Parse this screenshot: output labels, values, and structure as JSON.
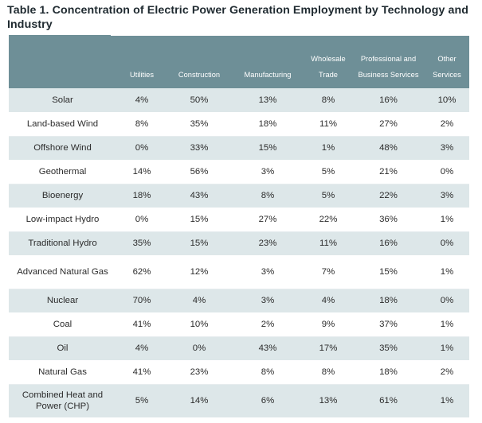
{
  "title": "Table 1. Concentration of Electric Power Generation Employment by Technology and Industry",
  "header_bg": "#6e8f97",
  "band_bg": "#dde7e9",
  "columns": [
    "",
    "Utilities",
    "Construction",
    "Manufacturing",
    "Wholesale Trade",
    "Professional and Business Services",
    "Other Services"
  ],
  "rows": [
    {
      "name": "Solar",
      "values": [
        "4%",
        "50%",
        "13%",
        "8%",
        "16%",
        "10%"
      ]
    },
    {
      "name": "Land-based Wind",
      "values": [
        "8%",
        "35%",
        "18%",
        "11%",
        "27%",
        "2%"
      ]
    },
    {
      "name": "Offshore Wind",
      "values": [
        "0%",
        "33%",
        "15%",
        "1%",
        "48%",
        "3%"
      ]
    },
    {
      "name": "Geothermal",
      "values": [
        "14%",
        "56%",
        "3%",
        "5%",
        "21%",
        "0%"
      ]
    },
    {
      "name": "Bioenergy",
      "values": [
        "18%",
        "43%",
        "8%",
        "5%",
        "22%",
        "3%"
      ]
    },
    {
      "name": "Low-impact Hydro",
      "values": [
        "0%",
        "15%",
        "27%",
        "22%",
        "36%",
        "1%"
      ]
    },
    {
      "name": "Traditional Hydro",
      "values": [
        "35%",
        "15%",
        "23%",
        "11%",
        "16%",
        "0%"
      ]
    },
    {
      "name": "Advanced Natural Gas",
      "values": [
        "62%",
        "12%",
        "3%",
        "7%",
        "15%",
        "1%"
      ]
    },
    {
      "name": "Nuclear",
      "values": [
        "70%",
        "4%",
        "3%",
        "4%",
        "18%",
        "0%"
      ]
    },
    {
      "name": "Coal",
      "values": [
        "41%",
        "10%",
        "2%",
        "9%",
        "37%",
        "1%"
      ]
    },
    {
      "name": "Oil",
      "values": [
        "4%",
        "0%",
        "43%",
        "17%",
        "35%",
        "1%"
      ]
    },
    {
      "name": "Natural Gas",
      "values": [
        "41%",
        "23%",
        "8%",
        "8%",
        "18%",
        "2%"
      ]
    },
    {
      "name": "Combined Heat and Power (CHP)",
      "values": [
        "5%",
        "14%",
        "6%",
        "13%",
        "61%",
        "1%"
      ]
    }
  ]
}
